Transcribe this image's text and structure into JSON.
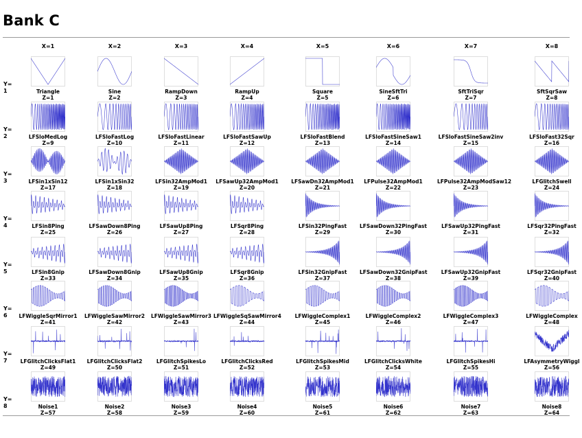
{
  "title": "Bank C",
  "x_headers": [
    "X=1",
    "X=2",
    "X=3",
    "X=4",
    "X=5",
    "X=6",
    "X=7",
    "X=8"
  ],
  "y_headers": [
    {
      "label": "Y=",
      "num": "1"
    },
    {
      "label": "Y=",
      "num": "2"
    },
    {
      "label": "Y=",
      "num": "3"
    },
    {
      "label": "Y=",
      "num": "4"
    },
    {
      "label": "Y=",
      "num": "5"
    },
    {
      "label": "Y=",
      "num": "6"
    },
    {
      "label": "Y=",
      "num": "7"
    },
    {
      "label": "Y=",
      "num": "8"
    }
  ],
  "colors": {
    "wave": "#3333cc",
    "axis": "#888888",
    "text": "#000000"
  },
  "rows": [
    [
      {
        "name": "Triangle",
        "z": "Z=1",
        "w": "triangle"
      },
      {
        "name": "Sine",
        "z": "Z=2",
        "w": "sine"
      },
      {
        "name": "RampDown",
        "z": "Z=3",
        "w": "rampdown"
      },
      {
        "name": "RampUp",
        "z": "Z=4",
        "w": "rampup"
      },
      {
        "name": "Square",
        "z": "Z=5",
        "w": "square"
      },
      {
        "name": "SineSftTri",
        "z": "Z=6",
        "w": "sinesfttri"
      },
      {
        "name": "SftTriSqr",
        "z": "Z=7",
        "w": "sfttrisqr"
      },
      {
        "name": "SftSqrSaw",
        "z": "Z=8",
        "w": "sftsqrsaw"
      }
    ],
    [
      {
        "name": "LFSloMedLog",
        "z": "Z=9",
        "w": "chirp"
      },
      {
        "name": "LFSloFastLog",
        "z": "Z=10",
        "w": "chirp"
      },
      {
        "name": "LFSloFastLinear",
        "z": "Z=11",
        "w": "chirp"
      },
      {
        "name": "LFSloFastSawUp",
        "z": "Z=12",
        "w": "chirp"
      },
      {
        "name": "LFSloFastBlend",
        "z": "Z=13",
        "w": "chirp"
      },
      {
        "name": "LFSloFastSineSaw1",
        "z": "Z=14",
        "w": "chirp"
      },
      {
        "name": "LFSloFastSineSaw2inv",
        "z": "Z=15",
        "w": "chirp"
      },
      {
        "name": "LFSloFast32Sqr",
        "z": "Z=16",
        "w": "chirp"
      }
    ],
    [
      {
        "name": "LFSin1xSin12",
        "z": "Z=17",
        "w": "am"
      },
      {
        "name": "LFSin1xSin32",
        "z": "Z=18",
        "w": "am"
      },
      {
        "name": "LFSin32AmpMod1",
        "z": "Z=19",
        "w": "diamond"
      },
      {
        "name": "LFSawUp32AmpMod1",
        "z": "Z=20",
        "w": "diamond"
      },
      {
        "name": "LFSawDn32AmpMod1",
        "z": "Z=21",
        "w": "diamond"
      },
      {
        "name": "LFPulse32AmpMod1",
        "z": "Z=22",
        "w": "diamond"
      },
      {
        "name": "LFPulse32AmpModSaw12",
        "z": "Z=23",
        "w": "diamond"
      },
      {
        "name": "LFGlitchSwell",
        "z": "Z=24",
        "w": "diamond"
      }
    ],
    [
      {
        "name": "LFSin8Ping",
        "z": "Z=25",
        "w": "ping"
      },
      {
        "name": "LFSawDown8Ping",
        "z": "Z=26",
        "w": "ping"
      },
      {
        "name": "LFSawUp8Ping",
        "z": "Z=27",
        "w": "ping"
      },
      {
        "name": "LFSqr8Ping",
        "z": "Z=28",
        "w": "ping"
      },
      {
        "name": "LFSin32PingFast",
        "z": "Z=29",
        "w": "pingfast"
      },
      {
        "name": "LFSawDown32PingFast",
        "z": "Z=30",
        "w": "pingfast"
      },
      {
        "name": "LFSawUp32PingFast",
        "z": "Z=31",
        "w": "pingfast"
      },
      {
        "name": "LFSqr32PingFast",
        "z": "Z=32",
        "w": "pingfast"
      }
    ],
    [
      {
        "name": "LFSin8Gnip",
        "z": "Z=33",
        "w": "gnip"
      },
      {
        "name": "LFSawDown8Gnip",
        "z": "Z=34",
        "w": "gnip"
      },
      {
        "name": "LFSawUp8Gnip",
        "z": "Z=35",
        "w": "gnip"
      },
      {
        "name": "LFSqr8Gnip",
        "z": "Z=36",
        "w": "gnip"
      },
      {
        "name": "LFSin32GnipFast",
        "z": "Z=37",
        "w": "gnipfast"
      },
      {
        "name": "LFSawDown32GnipFast",
        "z": "Z=38",
        "w": "gnipfast"
      },
      {
        "name": "LFSawUp32GnipFast",
        "z": "Z=39",
        "w": "gnipfast"
      },
      {
        "name": "LFSqr32GnipFast",
        "z": "Z=40",
        "w": "gnipfast"
      }
    ],
    [
      {
        "name": "LFWiggleSqrMirror1",
        "z": "Z=41",
        "w": "wiggle"
      },
      {
        "name": "LFWiggleSawMirror2",
        "z": "Z=42",
        "w": "wiggle"
      },
      {
        "name": "LFWiggleSawMirror3",
        "z": "Z=43",
        "w": "wiggle"
      },
      {
        "name": "LFWiggleSqSawMirror4",
        "z": "Z=44",
        "w": "wiggle"
      },
      {
        "name": "LFWiggleComplex1",
        "z": "Z=45",
        "w": "wiggle"
      },
      {
        "name": "LFWiggleComplex2",
        "z": "Z=46",
        "w": "wiggle"
      },
      {
        "name": "LFWiggleComplex3",
        "z": "Z=47",
        "w": "wiggle"
      },
      {
        "name": "LFWiggleComplex",
        "z": "Z=48",
        "w": "wiggle"
      }
    ],
    [
      {
        "name": "LFGlitchClicksFlat1",
        "z": "Z=49",
        "w": "clicks"
      },
      {
        "name": "LFGlitchClicksFlat2",
        "z": "Z=50",
        "w": "clicks"
      },
      {
        "name": "LFGlitchSpikesLo",
        "z": "Z=51",
        "w": "clicks"
      },
      {
        "name": "LFGlitchClicksRed",
        "z": "Z=52",
        "w": "clicks"
      },
      {
        "name": "LFGlitchSpikesMid",
        "z": "Z=53",
        "w": "clicks"
      },
      {
        "name": "LFGlitchClicksWhite",
        "z": "Z=54",
        "w": "clicks"
      },
      {
        "name": "LFGlitchSpikesHi",
        "z": "Z=55",
        "w": "clicks"
      },
      {
        "name": "LFAsymmetryWiggl",
        "z": "Z=56",
        "w": "vshape"
      }
    ],
    [
      {
        "name": "Noise1",
        "z": "Z=57",
        "w": "noise"
      },
      {
        "name": "Noise2",
        "z": "Z=58",
        "w": "noise"
      },
      {
        "name": "Noise3",
        "z": "Z=59",
        "w": "noise"
      },
      {
        "name": "Noise4",
        "z": "Z=60",
        "w": "noise"
      },
      {
        "name": "Noise5",
        "z": "Z=61",
        "w": "noise"
      },
      {
        "name": "Noise6",
        "z": "Z=62",
        "w": "noise"
      },
      {
        "name": "Noise7",
        "z": "Z=63",
        "w": "noise"
      },
      {
        "name": "Noise8",
        "z": "Z=64",
        "w": "noise"
      }
    ]
  ]
}
